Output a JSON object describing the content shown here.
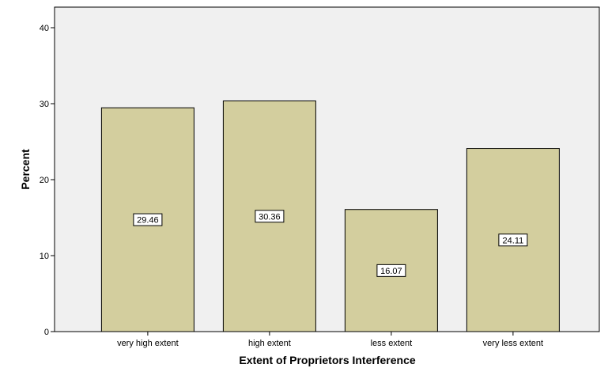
{
  "chart_data": {
    "type": "bar",
    "title": "",
    "xlabel": "Extent of Proprietors Interference",
    "ylabel": "Percent",
    "categories": [
      "very high extent",
      "high extent",
      "less extent",
      "very less extent"
    ],
    "values": [
      29.46,
      30.36,
      16.07,
      24.11
    ],
    "data_labels": [
      "29.46",
      "30.36",
      "16.07",
      "24.11"
    ],
    "ylim": [
      0,
      40
    ],
    "yticks": [
      "0",
      "10",
      "20",
      "30",
      "40"
    ],
    "grid": false,
    "legend": "none",
    "colors": {
      "plot_background": "#f0f0f0",
      "bar_fill": "#d3ce9e",
      "bar_stroke": "#000000"
    }
  }
}
